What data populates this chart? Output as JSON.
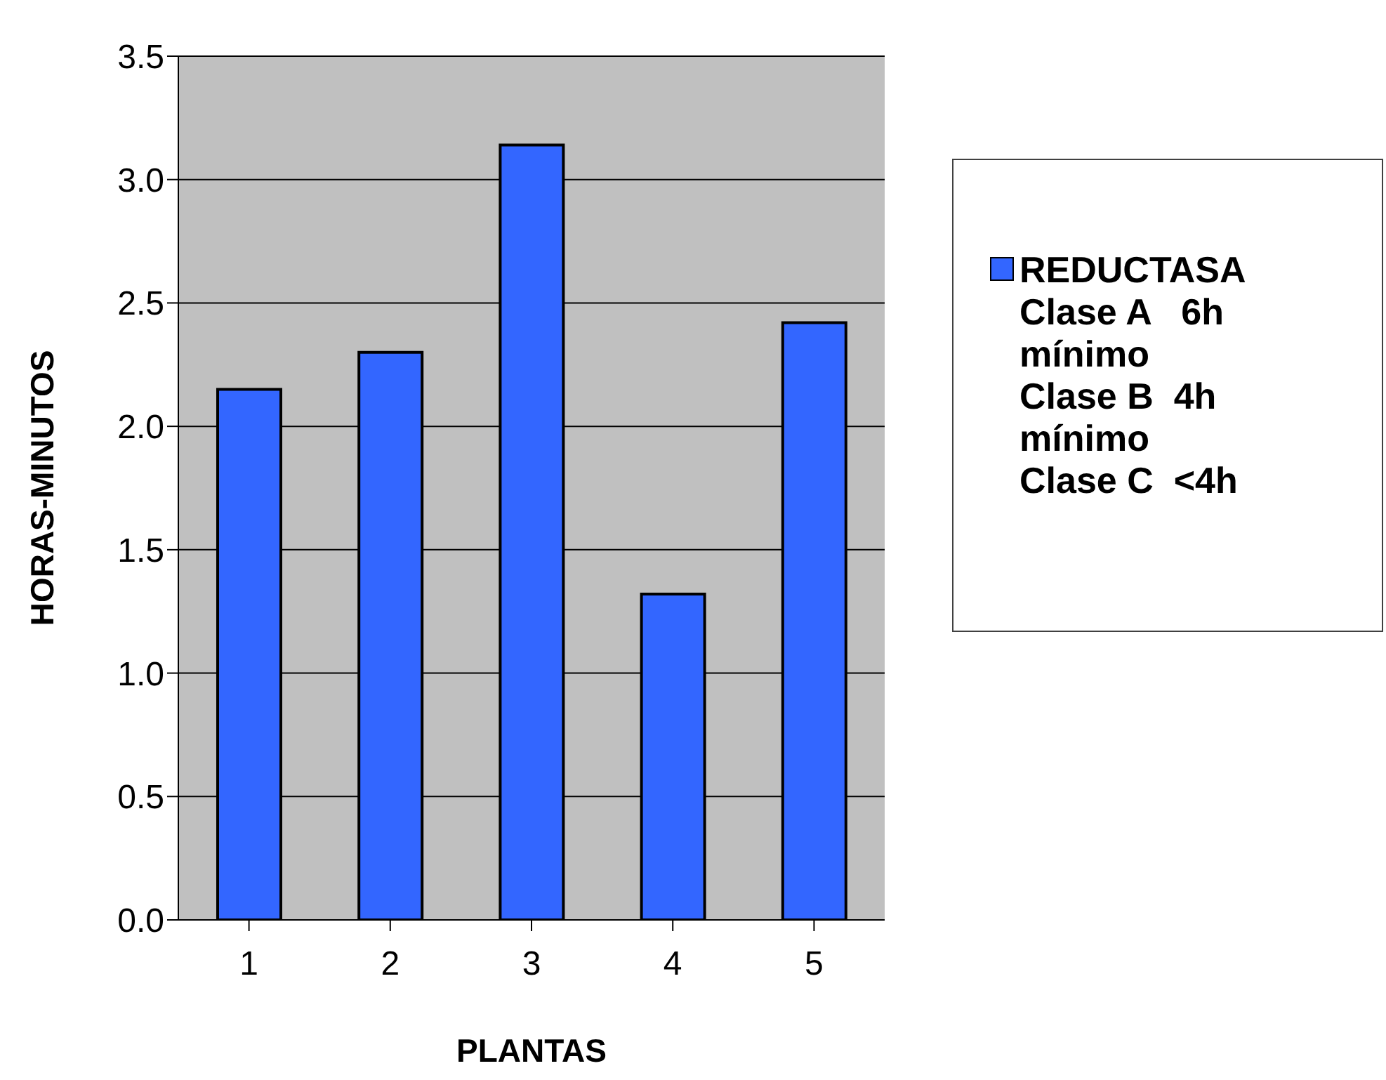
{
  "chart_data": {
    "type": "bar",
    "xlabel": "PLANTAS",
    "ylabel": "HORAS-MINUTOS",
    "categories": [
      "1",
      "2",
      "3",
      "4",
      "5"
    ],
    "series": [
      {
        "name": "REDUCTASA Clase A   6h mínimo Clase B  4h mínimo Clase C  <4h",
        "color": "#3366ff",
        "values": [
          2.15,
          2.3,
          3.14,
          1.32,
          2.42
        ]
      }
    ],
    "ylim": [
      0,
      3.5
    ],
    "yticks": [
      {
        "value": 0,
        "label": "0.0"
      },
      0.5,
      {
        "value": 1,
        "label": "1.0"
      },
      1.5,
      {
        "value": 2,
        "label": "2.0"
      },
      2.5,
      {
        "value": 3,
        "label": "3.0"
      },
      3.5
    ],
    "grid": "y",
    "legend": "right"
  }
}
